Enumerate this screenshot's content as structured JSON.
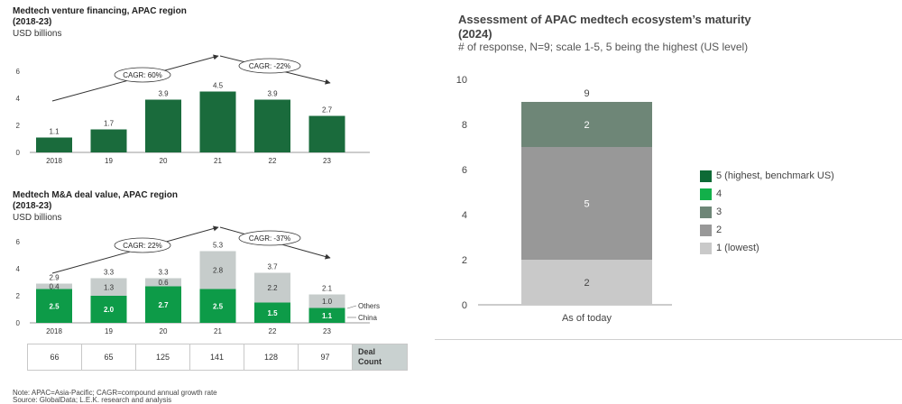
{
  "chart_data": [
    {
      "type": "bar",
      "title": "Medtech venture financing, APAC region",
      "subtitle": "(2018-23)",
      "ylabel": "USD billions",
      "categories": [
        "2018",
        "19",
        "20",
        "21",
        "22",
        "23"
      ],
      "values": [
        1.1,
        1.7,
        3.9,
        4.5,
        3.9,
        2.7
      ],
      "value_labels": [
        "1.1",
        "1.7",
        "3.9",
        "4.5",
        "3.9",
        "2.7"
      ],
      "ylim": [
        0,
        6
      ],
      "yticks": [
        "0",
        "2",
        "4",
        "6"
      ],
      "cagr": [
        {
          "label": "CAGR: 60%"
        },
        {
          "label": "CAGR: -22%"
        }
      ],
      "color": "#1a6b3c"
    },
    {
      "type": "bar",
      "stacked": true,
      "title": "Medtech M&A deal value, APAC region",
      "subtitle": "(2018-23)",
      "ylabel": "USD billions",
      "categories": [
        "2018",
        "19",
        "20",
        "21",
        "22",
        "23"
      ],
      "series": [
        {
          "name": "China",
          "values": [
            2.5,
            2.0,
            2.7,
            2.5,
            1.5,
            1.1
          ],
          "labels": [
            "2.5",
            "2.0",
            "2.7",
            "2.5",
            "1.5",
            "1.1"
          ],
          "color": "#0d9b48"
        },
        {
          "name": "Others",
          "values": [
            0.4,
            1.3,
            0.6,
            2.8,
            2.2,
            1.0
          ],
          "labels": [
            "0.4",
            "1.3",
            "0.6",
            "2.8",
            "2.2",
            "1.0"
          ],
          "color": "#c6cccb"
        }
      ],
      "totals": [
        "2.9",
        "3.3",
        "3.3",
        "5.3",
        "3.7",
        "2.1"
      ],
      "ylim": [
        0,
        6
      ],
      "yticks": [
        "0",
        "2",
        "4",
        "6"
      ],
      "cagr": [
        {
          "label": "CAGR: 22%"
        },
        {
          "label": "CAGR: -37%"
        }
      ],
      "legend": [
        "Others",
        "China"
      ],
      "deal_count": {
        "label_line1": "Deal",
        "label_line2": "Count",
        "values": [
          "66",
          "65",
          "125",
          "141",
          "128",
          "97"
        ]
      }
    },
    {
      "type": "bar",
      "stacked": true,
      "title_line1": "Assessment of APAC medtech ecosystem’s maturity",
      "title_line2": "(2024)",
      "subtitle": "# of response, N=9; scale 1-5, 5 being the highest (US level)",
      "categories": [
        "As of today"
      ],
      "series": [
        {
          "name": "1 (lowest)",
          "values": [
            2
          ],
          "label": "2",
          "color": "#c9c9c9"
        },
        {
          "name": "2",
          "values": [
            5
          ],
          "label": "5",
          "color": "#989898"
        },
        {
          "name": "3",
          "values": [
            2
          ],
          "label": "2",
          "color": "#6e8677"
        },
        {
          "name": "4",
          "values": [
            0
          ],
          "label": "",
          "color": "#12b04a"
        },
        {
          "name": "5 (highest, benchmark US)",
          "values": [
            0
          ],
          "label": "",
          "color": "#0e6a36"
        }
      ],
      "total": "9",
      "ylim": [
        0,
        10
      ],
      "yticks": [
        "0",
        "2",
        "4",
        "6",
        "8",
        "10"
      ]
    }
  ],
  "notes": {
    "line1": "Note: APAC=Asia-Pacific; CAGR=compound annual growth rate",
    "line2": "Source: GlobalData; L.E.K. research and analysis"
  }
}
